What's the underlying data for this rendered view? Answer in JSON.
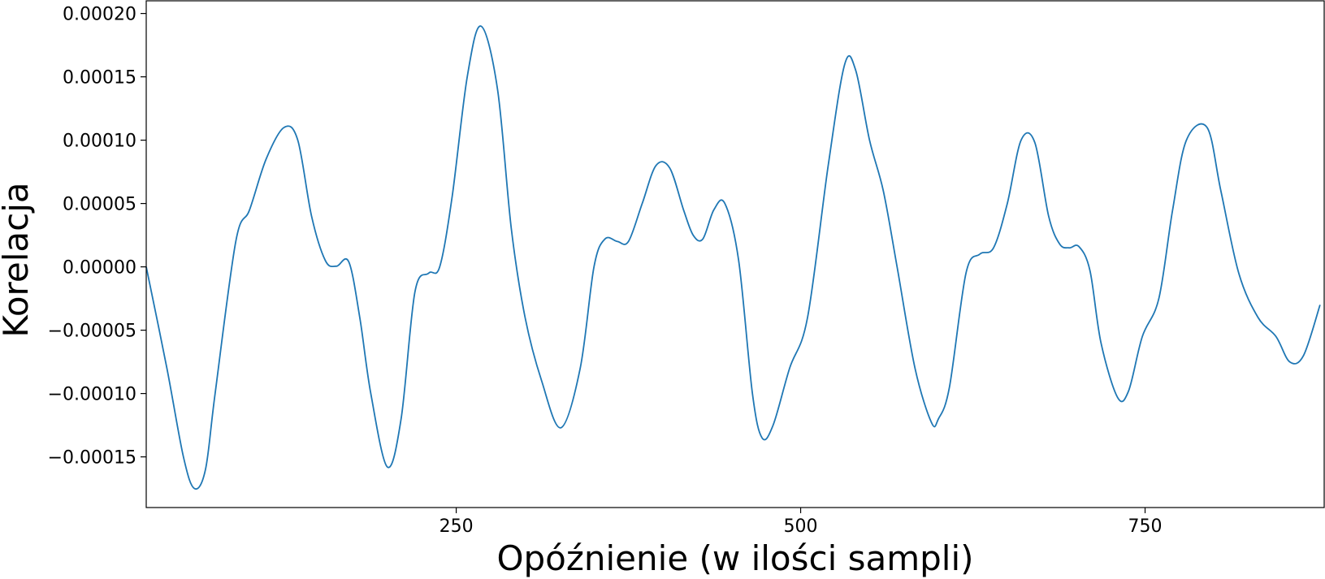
{
  "chart_data": {
    "type": "line",
    "title": "",
    "xlabel": "Opóźnienie (w ilości sampli)",
    "ylabel": "Korelacja",
    "xlim": [
      25,
      880
    ],
    "ylim": [
      -0.00019,
      0.00021
    ],
    "grid": false,
    "xticks": [
      {
        "value": 250,
        "label": "250"
      },
      {
        "value": 500,
        "label": "500"
      },
      {
        "value": 750,
        "label": "750"
      }
    ],
    "yticks": [
      {
        "value": 0.0002,
        "label": "0.00020"
      },
      {
        "value": 0.00015,
        "label": "0.00015"
      },
      {
        "value": 0.0001,
        "label": "0.00010"
      },
      {
        "value": 5e-05,
        "label": "0.00005"
      },
      {
        "value": 0.0,
        "label": "0.00000"
      },
      {
        "value": -5e-05,
        "label": "−0.00005"
      },
      {
        "value": -0.0001,
        "label": "−0.00010"
      },
      {
        "value": -0.00015,
        "label": "−0.00015"
      }
    ],
    "series": [
      {
        "color": "#1f77b4",
        "x": [
          25,
          40,
          52,
          60,
          68,
          75,
          90,
          100,
          112,
          125,
          135,
          145,
          155,
          163,
          172,
          180,
          188,
          200,
          210,
          220,
          230,
          238,
          247,
          258,
          268,
          280,
          290,
          300,
          312,
          326,
          340,
          350,
          358,
          367,
          375,
          385,
          395,
          405,
          415,
          422,
          429,
          437,
          445,
          455,
          465,
          472,
          480,
          492,
          505,
          520,
          532,
          540,
          550,
          560,
          570,
          583,
          595,
          600,
          608,
          620,
          630,
          640,
          650,
          660,
          670,
          680,
          688,
          695,
          702,
          710,
          718,
          730,
          738,
          748,
          760,
          770,
          780,
          795,
          805,
          818,
          832,
          845,
          855,
          865,
          877
        ],
        "y": [
          0.0,
          -8e-05,
          -0.00015,
          -0.000175,
          -0.00016,
          -0.0001,
          2e-05,
          4.5e-05,
          8.5e-05,
          0.00011,
          0.0001,
          4e-05,
          5e-06,
          5e-07,
          4e-06,
          -4e-05,
          -0.0001,
          -0.000158,
          -0.00012,
          -2e-05,
          -5e-06,
          0.0,
          5.5e-05,
          0.00015,
          0.00019,
          0.00014,
          3e-05,
          -4e-05,
          -9e-05,
          -0.000127,
          -8e-05,
          0.0,
          2.2e-05,
          2e-05,
          2e-05,
          5e-05,
          8e-05,
          7.8e-05,
          4.5e-05,
          2.5e-05,
          2.2e-05,
          4.5e-05,
          5e-05,
          5e-06,
          -0.0001,
          -0.000135,
          -0.000125,
          -8e-05,
          -4e-05,
          8e-05,
          0.00016,
          0.000155,
          0.0001,
          6e-05,
          0.0,
          -8e-05,
          -0.000123,
          -0.00012,
          -9.5e-05,
          -5e-06,
          1e-05,
          1.5e-05,
          5e-05,
          0.0001,
          9.8e-05,
          4e-05,
          1.8e-05,
          1.5e-05,
          1.6e-05,
          -3e-06,
          -6e-05,
          -0.000103,
          -9.8e-05,
          -5.5e-05,
          -2.5e-05,
          4.5e-05,
          0.0001,
          0.00011,
          6e-05,
          -5e-06,
          -4e-05,
          -5.5e-05,
          -7.5e-05,
          -7e-05,
          -3e-05
        ]
      }
    ]
  }
}
